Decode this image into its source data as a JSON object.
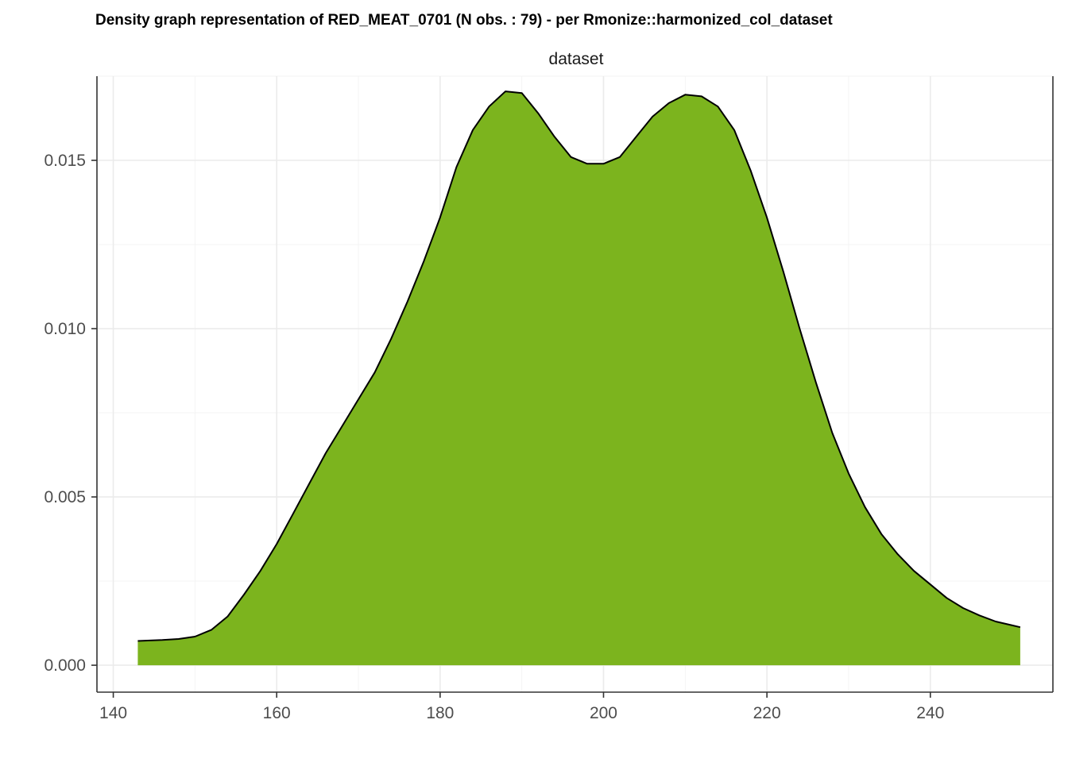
{
  "chart_data": {
    "type": "area",
    "title": "Density graph representation of RED_MEAT_0701 (N obs. : 79) - per Rmonize::harmonized_col_dataset",
    "facet_label": "dataset",
    "xlabel": "",
    "ylabel": "",
    "xlim": [
      138,
      255
    ],
    "ylim": [
      -0.0008,
      0.0175
    ],
    "x_ticks": [
      140,
      160,
      180,
      200,
      220,
      240
    ],
    "x_tick_labels": [
      "140",
      "160",
      "180",
      "200",
      "220",
      "240"
    ],
    "y_ticks": [
      0,
      0.005,
      0.01,
      0.015
    ],
    "y_tick_labels": [
      "0.000",
      "0.005",
      "0.010",
      "0.015"
    ],
    "grid": true,
    "fill_color": "#7cb41e",
    "line_color": "#000000",
    "series": [
      {
        "x": [
          143,
          146,
          148,
          150,
          152,
          154,
          156,
          158,
          160,
          162,
          164,
          166,
          168,
          170,
          172,
          174,
          176,
          178,
          180,
          182,
          184,
          186,
          188,
          190,
          192,
          194,
          196,
          198,
          200,
          202,
          204,
          206,
          208,
          210,
          212,
          214,
          216,
          218,
          220,
          222,
          224,
          226,
          228,
          230,
          232,
          234,
          236,
          238,
          240,
          242,
          244,
          246,
          248,
          251
        ],
        "y": [
          0.00072,
          0.00075,
          0.00078,
          0.00085,
          0.00105,
          0.00145,
          0.0021,
          0.0028,
          0.0036,
          0.0045,
          0.0054,
          0.0063,
          0.0071,
          0.0079,
          0.0087,
          0.0097,
          0.0108,
          0.012,
          0.0133,
          0.0148,
          0.0159,
          0.0166,
          0.01705,
          0.017,
          0.0164,
          0.0157,
          0.0151,
          0.0149,
          0.0149,
          0.0151,
          0.0157,
          0.0163,
          0.0167,
          0.01695,
          0.0169,
          0.0166,
          0.0159,
          0.0147,
          0.0133,
          0.0117,
          0.01,
          0.0084,
          0.0069,
          0.0057,
          0.0047,
          0.0039,
          0.0033,
          0.0028,
          0.0024,
          0.002,
          0.0017,
          0.00148,
          0.0013,
          0.00113
        ]
      }
    ]
  }
}
